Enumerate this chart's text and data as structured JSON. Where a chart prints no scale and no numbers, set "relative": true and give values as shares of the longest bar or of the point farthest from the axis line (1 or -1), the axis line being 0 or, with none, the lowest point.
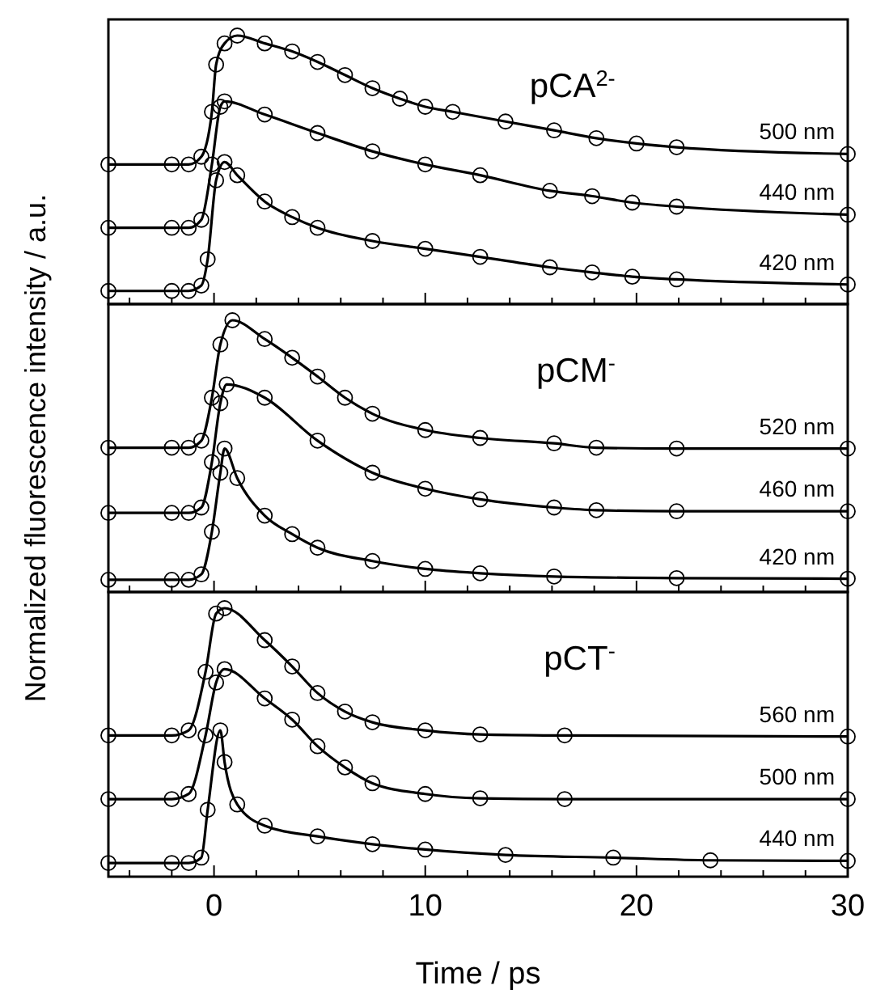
{
  "chart_data": [
    {
      "type": "line",
      "title": "pCA$^{2-}$",
      "relative": true,
      "marker": "circle",
      "line_style": "solid",
      "tick_labels": false,
      "xlim": [
        -5,
        30
      ],
      "xticks": [
        {
          "value": -4,
          "label": null
        },
        {
          "value": -2,
          "label": null
        },
        0,
        {
          "value": 2,
          "label": null
        },
        {
          "value": 4,
          "label": null
        },
        {
          "value": 6,
          "label": null
        },
        {
          "value": 8,
          "label": null
        },
        10,
        {
          "value": 12,
          "label": null
        },
        {
          "value": 14,
          "label": null
        },
        {
          "value": 16,
          "label": null
        },
        {
          "value": 18,
          "label": null
        },
        20,
        {
          "value": 22,
          "label": null
        },
        {
          "value": 24,
          "label": null
        },
        {
          "value": 26,
          "label": null
        },
        {
          "value": 28,
          "label": null
        },
        30
      ],
      "series": [
        {
          "name": "500 nm",
          "color": "#000000",
          "x": [
            -5,
            -2,
            -1.2,
            -0.6,
            -0.1,
            0.1,
            0.5,
            1.1,
            2.4,
            3.7,
            4.9,
            6.2,
            7.5,
            8.8,
            10,
            11.3,
            13.8,
            16.1,
            18.1,
            20,
            21.9,
            30
          ],
          "values": [
            0.52,
            0.52,
            0.52,
            0.549,
            0.716,
            0.892,
            0.971,
            1,
            0.971,
            0.941,
            0.902,
            0.853,
            0.804,
            0.765,
            0.735,
            0.716,
            0.68,
            0.647,
            0.618,
            0.598,
            0.584,
            0.559
          ]
        },
        {
          "name": "440 nm",
          "color": "#000000",
          "x": [
            -5,
            -2,
            -1.2,
            -0.6,
            -0.1,
            0.3,
            0.5,
            2.4,
            4.9,
            7.5,
            10,
            12.6,
            15.9,
            17.9,
            19.8,
            21.9,
            30
          ],
          "values": [
            0.284,
            0.284,
            0.284,
            0.314,
            0.52,
            0.735,
            0.755,
            0.706,
            0.637,
            0.569,
            0.52,
            0.48,
            0.422,
            0.402,
            0.378,
            0.363,
            0.333
          ]
        },
        {
          "name": "420 nm",
          "color": "#000000",
          "x": [
            -5,
            -2,
            -1.2,
            -0.6,
            -0.3,
            0.1,
            0.5,
            1.1,
            2.4,
            3.7,
            4.9,
            7.5,
            10,
            12.6,
            15.9,
            17.9,
            19.8,
            21.9,
            30
          ],
          "values": [
            0.049,
            0.049,
            0.049,
            0.069,
            0.167,
            0.461,
            0.529,
            0.48,
            0.382,
            0.324,
            0.284,
            0.235,
            0.206,
            0.176,
            0.137,
            0.118,
            0.102,
            0.092,
            0.073
          ]
        }
      ]
    },
    {
      "type": "line",
      "title": "pCM$^{-}$",
      "ylabel": "Normalized fluorescence intensity / a.u.",
      "relative": true,
      "marker": "circle",
      "line_style": "solid",
      "tick_labels": false,
      "xlim": [
        -5,
        30
      ],
      "xticks": [
        {
          "value": -4,
          "label": null
        },
        {
          "value": -2,
          "label": null
        },
        0,
        {
          "value": 2,
          "label": null
        },
        {
          "value": 4,
          "label": null
        },
        {
          "value": 6,
          "label": null
        },
        {
          "value": 8,
          "label": null
        },
        10,
        {
          "value": 12,
          "label": null
        },
        {
          "value": 14,
          "label": null
        },
        {
          "value": 16,
          "label": null
        },
        {
          "value": 18,
          "label": null
        },
        20,
        {
          "value": 22,
          "label": null
        },
        {
          "value": 24,
          "label": null
        },
        {
          "value": 26,
          "label": null
        },
        {
          "value": 28,
          "label": null
        },
        30
      ],
      "series": [
        {
          "name": "520 nm",
          "color": "#000000",
          "x": [
            -5,
            -2,
            -1.2,
            -0.6,
            -0.1,
            0.3,
            0.87,
            2.4,
            3.7,
            4.9,
            6.2,
            7.5,
            10,
            12.6,
            16.1,
            18.1,
            21.9,
            30
          ],
          "values": [
            0.531,
            0.531,
            0.531,
            0.557,
            0.715,
            0.911,
            1,
            0.931,
            0.862,
            0.793,
            0.715,
            0.656,
            0.596,
            0.567,
            0.547,
            0.531,
            0.528,
            0.528
          ]
        },
        {
          "name": "460 nm",
          "color": "#000000",
          "x": [
            -5,
            -2,
            -1.2,
            -0.6,
            -0.1,
            0.3,
            0.6,
            2.4,
            4.9,
            7.5,
            10,
            12.6,
            16.1,
            18.1,
            21.9,
            30
          ],
          "values": [
            0.291,
            0.291,
            0.291,
            0.311,
            0.478,
            0.695,
            0.764,
            0.715,
            0.557,
            0.439,
            0.38,
            0.341,
            0.311,
            0.301,
            0.297,
            0.297
          ]
        },
        {
          "name": "420 nm",
          "color": "#000000",
          "x": [
            -5,
            -2,
            -1.2,
            -0.6,
            -0.1,
            0.3,
            0.5,
            1.1,
            2.4,
            3.7,
            4.9,
            7.5,
            10,
            12.6,
            16.1,
            21.9,
            30
          ],
          "values": [
            0.045,
            0.045,
            0.045,
            0.065,
            0.222,
            0.439,
            0.528,
            0.419,
            0.281,
            0.213,
            0.163,
            0.114,
            0.085,
            0.069,
            0.057,
            0.051,
            0.049
          ]
        }
      ]
    },
    {
      "type": "line",
      "title": "pCT$^{-}$",
      "xlabel": "Time / ps",
      "relative": true,
      "marker": "circle",
      "line_style": "solid",
      "tick_labels": "x",
      "xlim": [
        -5,
        30
      ],
      "xticks": [
        {
          "value": -4,
          "label": null
        },
        {
          "value": -2,
          "label": null
        },
        0,
        {
          "value": 2,
          "label": null
        },
        {
          "value": 4,
          "label": null
        },
        {
          "value": 6,
          "label": null
        },
        {
          "value": 8,
          "label": null
        },
        10,
        {
          "value": 12,
          "label": null
        },
        {
          "value": 14,
          "label": null
        },
        {
          "value": 16,
          "label": null
        },
        {
          "value": 18,
          "label": null
        },
        20,
        {
          "value": 22,
          "label": null
        },
        {
          "value": 24,
          "label": null
        },
        {
          "value": 26,
          "label": null
        },
        {
          "value": 28,
          "label": null
        },
        30
      ],
      "series": [
        {
          "name": "560 nm",
          "color": "#000000",
          "x": [
            -5,
            -2,
            -1.2,
            -0.4,
            0.1,
            0.5,
            2.4,
            3.7,
            4.9,
            6.2,
            7.5,
            10,
            12.6,
            16.6,
            30
          ],
          "values": [
            0.526,
            0.526,
            0.545,
            0.763,
            0.98,
            1,
            0.881,
            0.783,
            0.684,
            0.615,
            0.575,
            0.545,
            0.53,
            0.526,
            0.522
          ]
        },
        {
          "name": "500 nm",
          "color": "#000000",
          "x": [
            -5,
            -2,
            -1.2,
            -0.4,
            0.1,
            0.5,
            2.4,
            3.7,
            4.9,
            6.2,
            7.5,
            10,
            12.6,
            16.6,
            30
          ],
          "values": [
            0.289,
            0.289,
            0.308,
            0.526,
            0.723,
            0.773,
            0.664,
            0.585,
            0.486,
            0.407,
            0.348,
            0.308,
            0.292,
            0.289,
            0.289
          ]
        },
        {
          "name": "440 nm",
          "color": "#000000",
          "x": [
            -5,
            -2,
            -1.2,
            -0.6,
            -0.3,
            0.3,
            0.5,
            1.1,
            2.4,
            4.9,
            7.5,
            10,
            13.8,
            18.9,
            23.5,
            30
          ],
          "values": [
            0.051,
            0.051,
            0.051,
            0.071,
            0.249,
            0.545,
            0.427,
            0.269,
            0.19,
            0.15,
            0.121,
            0.101,
            0.081,
            0.071,
            0.061,
            0.059
          ]
        }
      ]
    }
  ]
}
